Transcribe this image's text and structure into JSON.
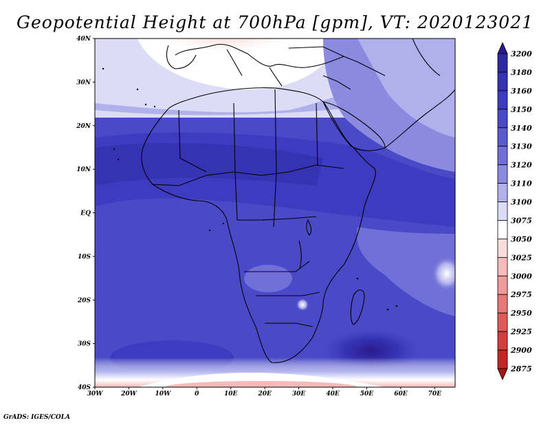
{
  "title": "Geopotential Height at 700hPa [gpm], VT: 2020123021",
  "credit": "GrADS: IGES/COLA",
  "map": {
    "lat_labels": [
      "40N",
      "30N",
      "20N",
      "10N",
      "EQ",
      "10S",
      "20S",
      "30S",
      "40S"
    ],
    "lon_labels": [
      "30W",
      "20W",
      "10W",
      "0",
      "10E",
      "20E",
      "30E",
      "40E",
      "50E",
      "60E",
      "70E"
    ],
    "lat_range": [
      40,
      -40
    ],
    "lon_range": [
      -30,
      76
    ]
  },
  "colorbar": {
    "levels": [
      "3200",
      "3180",
      "3160",
      "3150",
      "3140",
      "3130",
      "3120",
      "3110",
      "3100",
      "3075",
      "3050",
      "3025",
      "3000",
      "2975",
      "2950",
      "2925",
      "2900",
      "2875"
    ],
    "colors": [
      "#2a1a8e",
      "#2f28a3",
      "#3533b3",
      "#3d3cc0",
      "#4a4ac8",
      "#5b5bd0",
      "#7070d8",
      "#8a8ae0",
      "#b0b0ec",
      "#dcdcf6",
      "#ffffff",
      "#fbdcdc",
      "#f6baba",
      "#f09a9a",
      "#e87878",
      "#df5a5a",
      "#d43d3d",
      "#c42626",
      "#a81414"
    ]
  }
}
